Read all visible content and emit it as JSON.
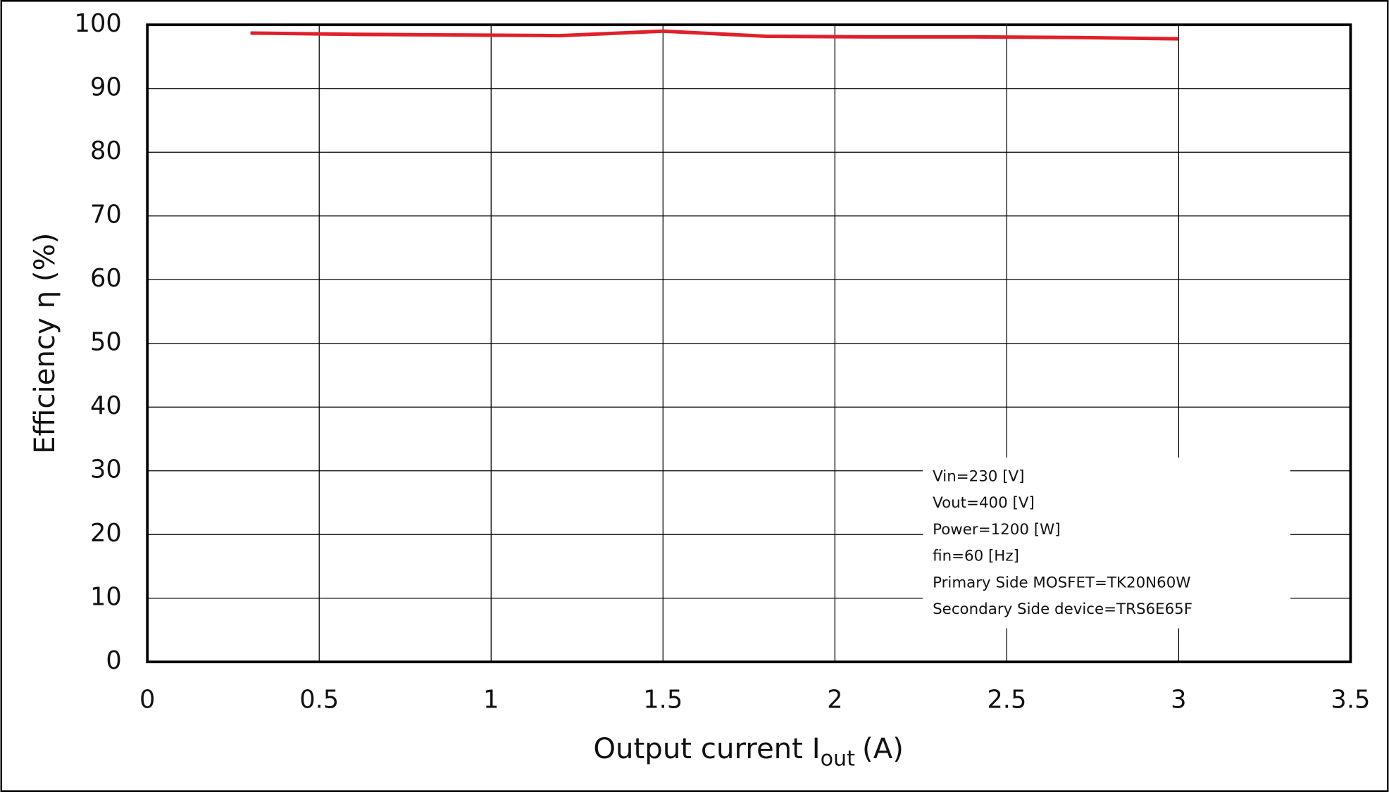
{
  "chart_data": {
    "type": "line",
    "ylabel": "Efficiency η (%)",
    "xlabel": "Output current I",
    "xlabel_sub": "out",
    "xlabel_suffix": "(A)",
    "x": [
      0.3,
      0.6,
      0.9,
      1.2,
      1.5,
      1.8,
      2.1,
      2.4,
      2.7,
      3.0
    ],
    "series": [
      {
        "color": "#e0202a",
        "values": [
          98.7,
          98.5,
          98.4,
          98.3,
          99.0,
          98.2,
          98.1,
          98.1,
          98.0,
          97.8
        ]
      }
    ],
    "xlim": [
      0,
      3.5
    ],
    "xticks": [
      0,
      0.5,
      1,
      1.5,
      2,
      2.5,
      3,
      3.5
    ],
    "ylim": [
      0,
      100
    ],
    "yticks": [
      0,
      10,
      20,
      30,
      40,
      50,
      60,
      70,
      80,
      90,
      100
    ],
    "grid": true,
    "annotations": [
      "Vin=230 [V]",
      "Vout=400 [V]",
      "Power=1200 [W]",
      "fin=60 [Hz]",
      "Primary Side MOSFET=TK20N60W",
      "Secondary Side device=TRS6E65F"
    ]
  }
}
